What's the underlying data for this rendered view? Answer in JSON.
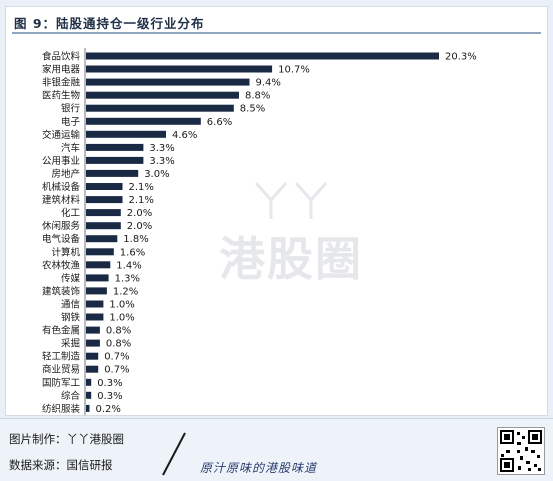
{
  "header": {
    "title": "图 9：陆股通持仓一级行业分布"
  },
  "chart_data": {
    "type": "bar",
    "orientation": "horizontal",
    "categories": [
      "食品饮料",
      "家用电器",
      "非银金融",
      "医药生物",
      "银行",
      "电子",
      "交通运输",
      "汽车",
      "公用事业",
      "房地产",
      "机械设备",
      "建筑材料",
      "化工",
      "休闲服务",
      "电气设备",
      "计算机",
      "农林牧渔",
      "传媒",
      "建筑装饰",
      "通信",
      "钢铁",
      "有色金属",
      "采掘",
      "轻工制造",
      "商业贸易",
      "国防军工",
      "综合",
      "纺织服装"
    ],
    "values": [
      20.3,
      10.7,
      9.4,
      8.8,
      8.5,
      6.6,
      4.6,
      3.3,
      3.3,
      3.0,
      2.1,
      2.1,
      2.0,
      2.0,
      1.8,
      1.6,
      1.4,
      1.3,
      1.2,
      1.0,
      1.0,
      0.8,
      0.8,
      0.7,
      0.7,
      0.3,
      0.3,
      0.2
    ],
    "value_labels": [
      "20.3%",
      "10.7%",
      "9.4%",
      "8.8%",
      "8.5%",
      "6.6%",
      "4.6%",
      "3.3%",
      "3.3%",
      "3.0%",
      "2.1%",
      "2.1%",
      "2.0%",
      "2.0%",
      "1.8%",
      "1.6%",
      "1.4%",
      "1.3%",
      "1.2%",
      "1.0%",
      "1.0%",
      "0.8%",
      "0.8%",
      "0.7%",
      "0.7%",
      "0.3%",
      "0.3%",
      "0.2%"
    ],
    "xlim": [
      0,
      22
    ],
    "bar_color": "#1b2a44",
    "grid": false
  },
  "watermark": {
    "glyphs": "丫丫",
    "text": "港股圈"
  },
  "footer": {
    "made_by": "图片制作：丫丫港股圈",
    "source": "数据来源：国信研报",
    "slogan": "原汁原味的港股味道"
  }
}
